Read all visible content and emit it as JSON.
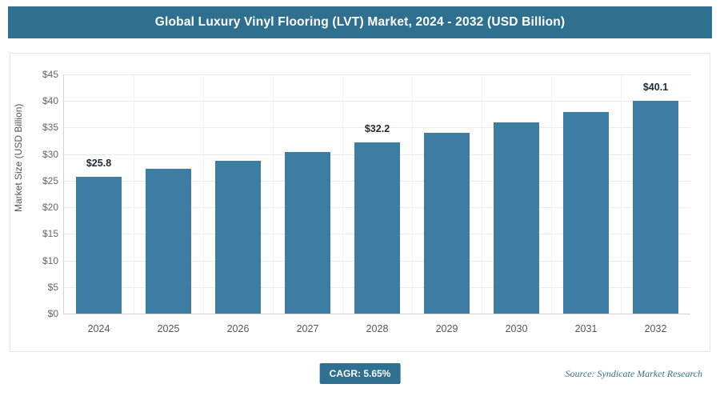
{
  "header": {
    "title": "Global Luxury Vinyl Flooring (LVT) Market, 2024 - 2032 (USD Billion)"
  },
  "colors": {
    "header_bg": "#2f7091",
    "bar_fill": "#3e7da3",
    "badge_bg": "#2f7091"
  },
  "chart_data": {
    "type": "bar",
    "title": "Global Luxury Vinyl Flooring (LVT) Market, 2024 - 2032 (USD Billion)",
    "categories": [
      "2024",
      "2025",
      "2026",
      "2027",
      "2028",
      "2029",
      "2030",
      "2031",
      "2032"
    ],
    "values": [
      25.8,
      27.3,
      28.8,
      30.4,
      32.2,
      34.0,
      35.9,
      37.9,
      40.1
    ],
    "data_labels": [
      "$25.8",
      "",
      "",
      "",
      "$32.2",
      "",
      "",
      "",
      "$40.1"
    ],
    "xlabel": "",
    "ylabel": "Market Size (USD Billion)",
    "ylim": [
      0,
      45
    ],
    "ytick_step": 5,
    "ytick_labels": [
      "$0",
      "$5",
      "$10",
      "$15",
      "$20",
      "$25",
      "$30",
      "$35",
      "$40",
      "$45"
    ],
    "grid": true,
    "legend": false
  },
  "footer": {
    "cagr_label": "CAGR: 5.65%",
    "source": "Source: Syndicate Market Research"
  }
}
